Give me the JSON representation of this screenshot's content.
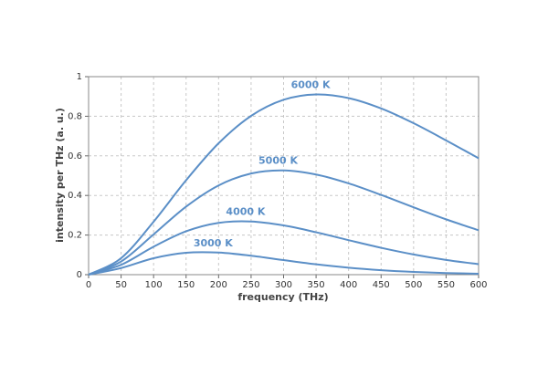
{
  "chart_data": {
    "type": "line",
    "x_label": "frequency (THz)",
    "y_label": "intensity per THz (a. u.)",
    "x": [
      0,
      50,
      100,
      150,
      200,
      250,
      300,
      350,
      400,
      450,
      500,
      550,
      600
    ],
    "series": [
      {
        "name": "3000 K",
        "color": "#5b8fc7",
        "values": [
          0,
          0.0334,
          0.0829,
          0.1104,
          0.1115,
          0.0956,
          0.0735,
          0.0522,
          0.035,
          0.0224,
          0.0138,
          0.0082,
          0.0048
        ]
      },
      {
        "name": "4000 K",
        "color": "#5b8fc7",
        "values": [
          0,
          0.0498,
          0.1413,
          0.2191,
          0.2617,
          0.2685,
          0.2487,
          0.2141,
          0.1742,
          0.1356,
          0.1019,
          0.0744,
          0.053
        ]
      },
      {
        "name": "5000 K",
        "color": "#5b8fc7",
        "values": [
          0,
          0.0665,
          0.2034,
          0.3436,
          0.4506,
          0.5111,
          0.5266,
          0.5059,
          0.4611,
          0.4028,
          0.3401,
          0.2794,
          0.2241
        ]
      },
      {
        "name": "6000 K",
        "color": "#5b8fc7",
        "values": [
          0,
          0.0833,
          0.2674,
          0.4768,
          0.6635,
          0.8018,
          0.8832,
          0.9102,
          0.8917,
          0.8394,
          0.7649,
          0.6782,
          0.5878
        ]
      }
    ],
    "xlim": [
      0,
      600
    ],
    "xticks": [
      0,
      50,
      100,
      150,
      200,
      250,
      300,
      350,
      400,
      450,
      500,
      550,
      600
    ],
    "ylim": [
      0,
      1
    ],
    "yticks": [
      0,
      0.2,
      0.4,
      0.6,
      0.8,
      1
    ],
    "grid": true
  }
}
